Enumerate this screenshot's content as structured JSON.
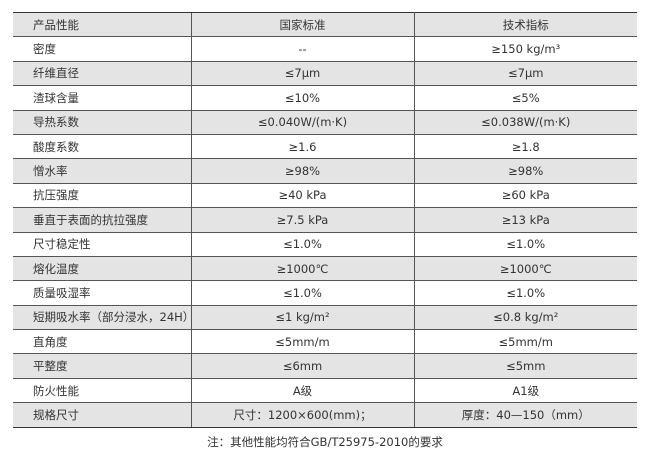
{
  "table": {
    "headers": [
      "产品性能",
      "国家标准",
      "技术指标"
    ],
    "rows": [
      [
        "密度",
        "--",
        "≥150 kg/m³"
      ],
      [
        "纤维直径",
        "≤7μm",
        "≤7μm"
      ],
      [
        "渣球含量",
        "≤10%",
        "≤5%"
      ],
      [
        "导热系数",
        "≤0.040W/(m·K)",
        "≤0.038W/(m·K)"
      ],
      [
        "酸度系数",
        "≥1.6",
        "≥1.8"
      ],
      [
        "憎水率",
        "≥98%",
        "≥98%"
      ],
      [
        "抗压强度",
        "≥40 kPa",
        "≥60 kPa"
      ],
      [
        "垂直于表面的抗拉强度",
        "≥7.5 kPa",
        "≥13 kPa"
      ],
      [
        "尺寸稳定性",
        "≤1.0%",
        "≤1.0%"
      ],
      [
        "熔化温度",
        "≥1000℃",
        "≥1000℃"
      ],
      [
        "质量吸湿率",
        "≤1.0%",
        "≤1.0%"
      ],
      [
        "短期吸水率（部分浸水，24H）",
        "≤1 kg/m²",
        "≤0.8 kg/m²"
      ],
      [
        "直角度",
        "≤5mm/m",
        "≤5mm/m"
      ],
      [
        "平整度",
        "≤6mm",
        "≤5mm"
      ],
      [
        "防火性能",
        "A级",
        "A1级"
      ],
      [
        "规格尺寸",
        "尺寸：1200×600(mm)；",
        "厚度：40—150（mm）"
      ]
    ]
  },
  "note": "注：其他性能均符合GB/T25975-2010的要求"
}
